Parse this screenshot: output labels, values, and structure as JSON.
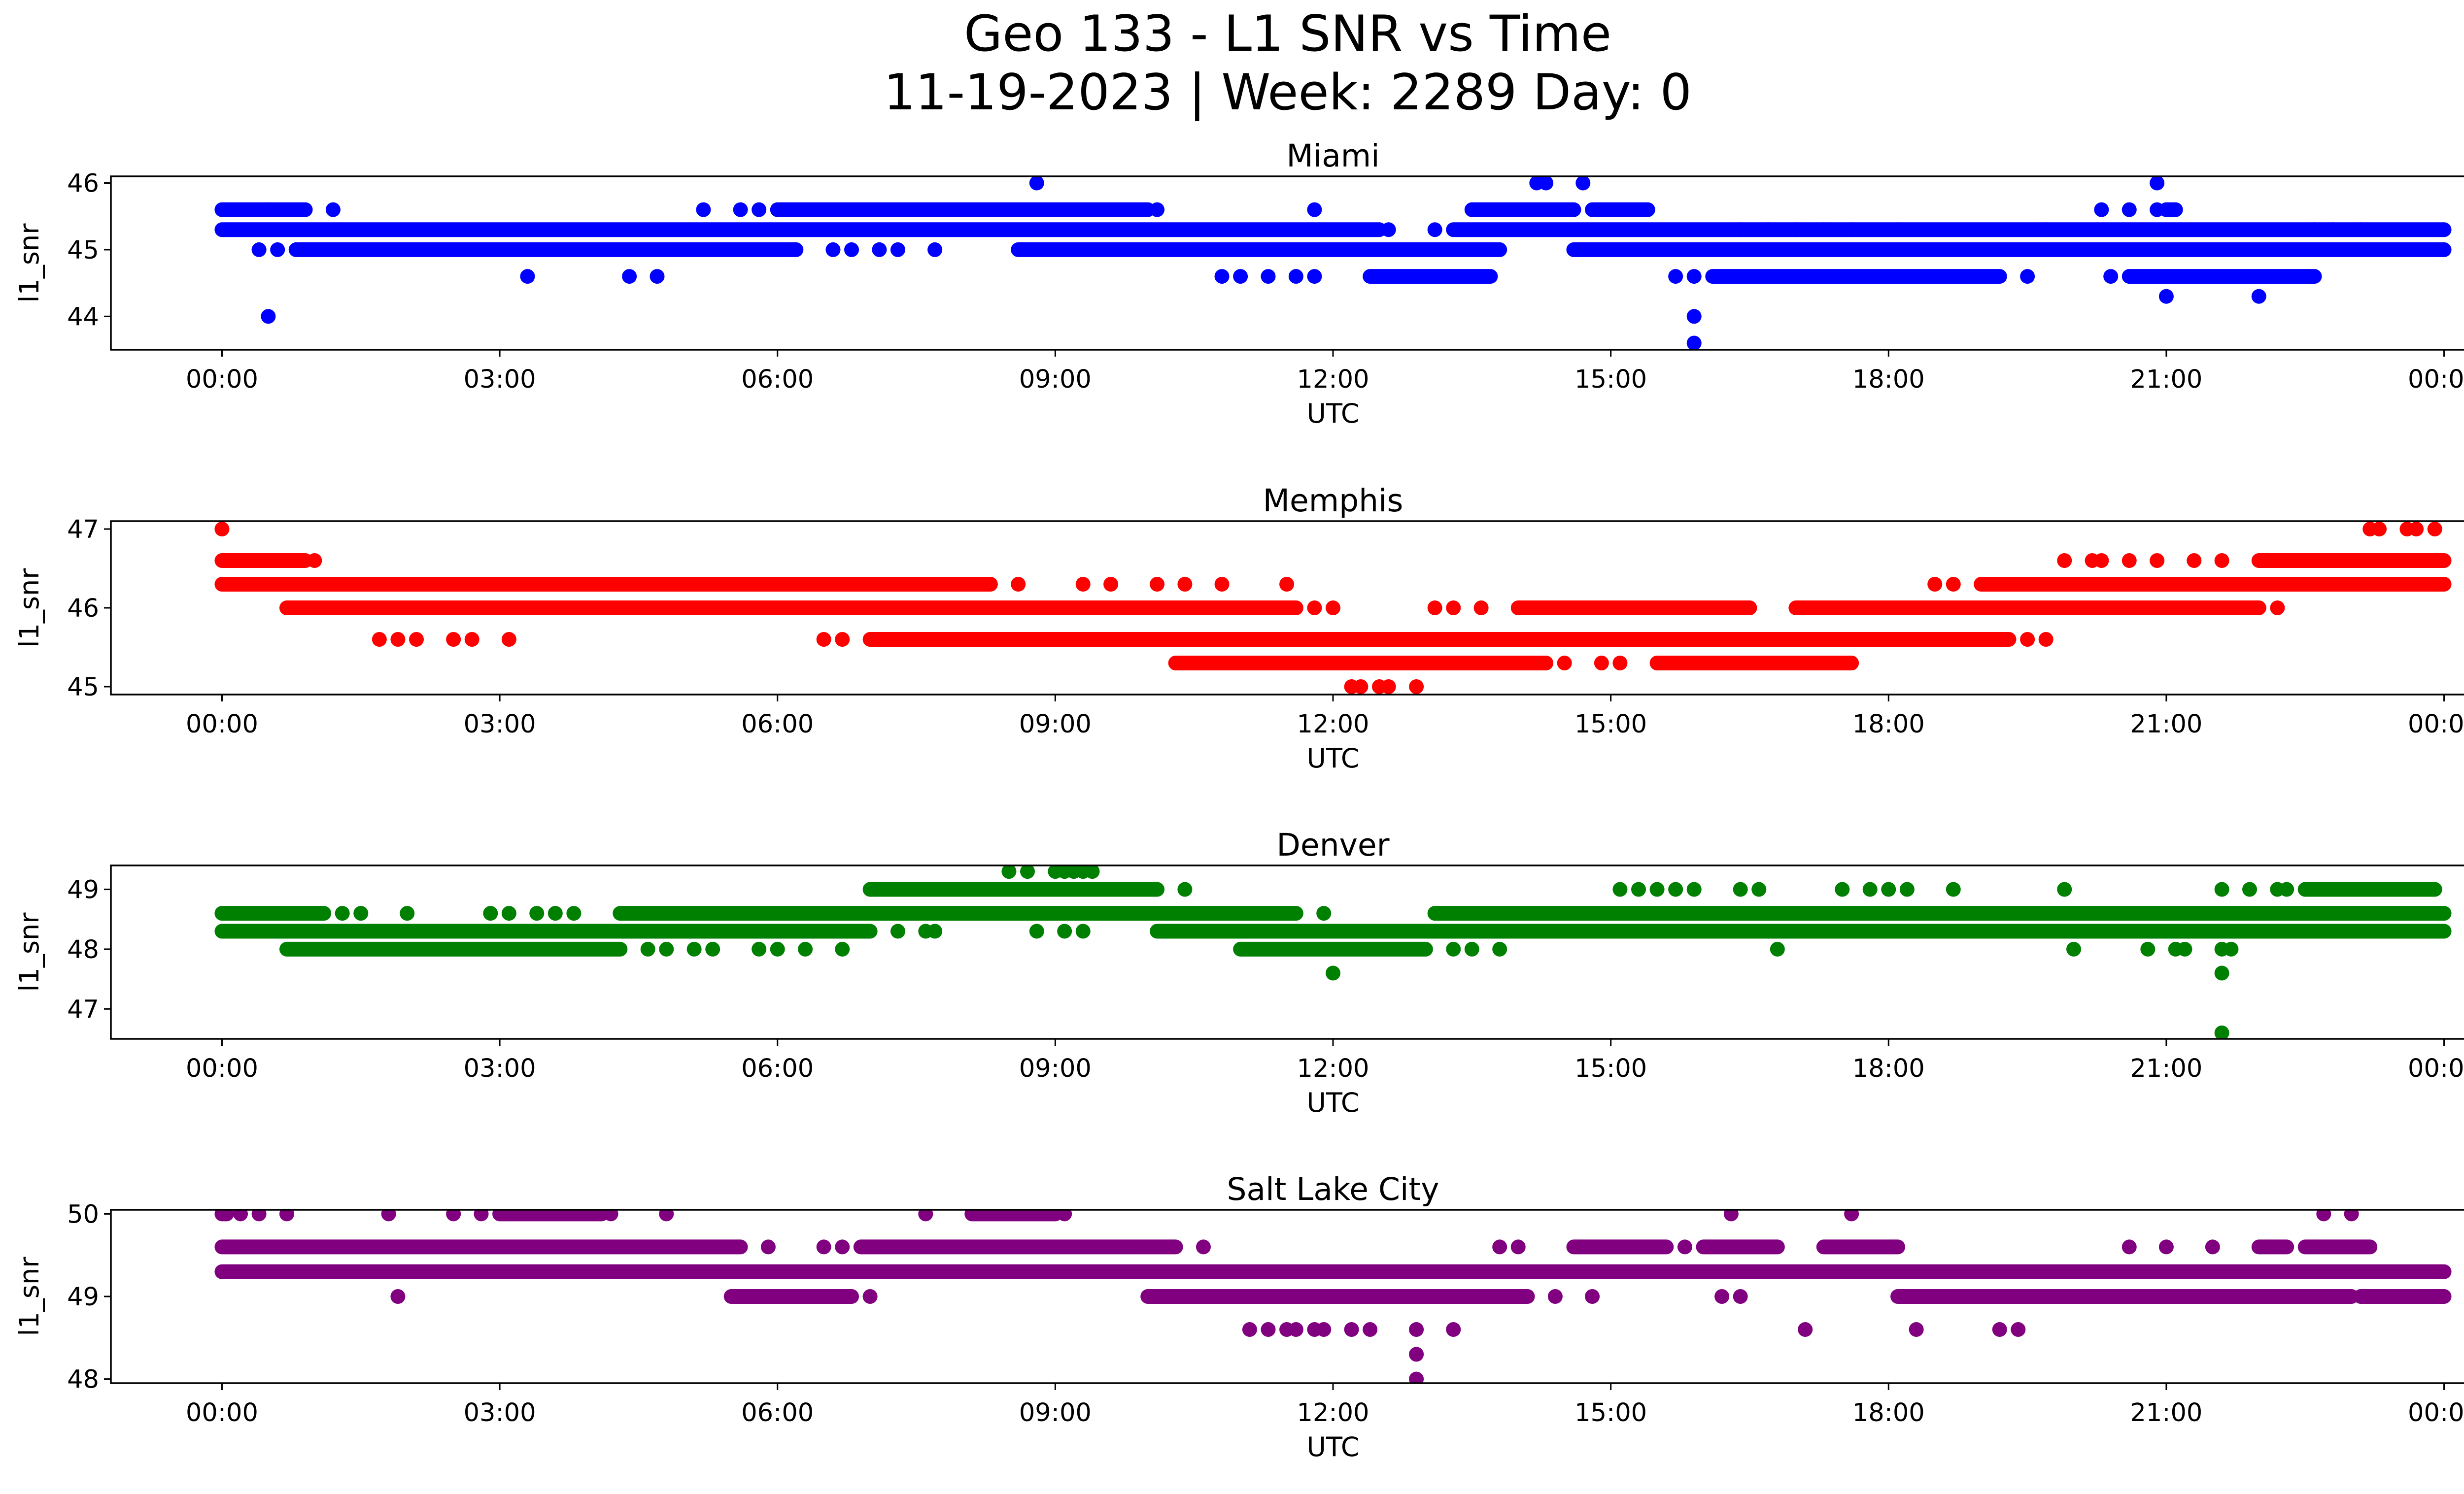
{
  "chart_data": {
    "type": "scatter",
    "title_line1": "Geo 133 - L1 SNR vs Time",
    "title_line2": "11-19-2023 | Week: 2289 Day: 0",
    "xlabel": "UTC",
    "ylabel": "l1_snr",
    "x_unit": "hours UTC",
    "xlim": [
      -1.2,
      25.2
    ],
    "x_tick_values": [
      0,
      3,
      6,
      9,
      12,
      15,
      18,
      21,
      24
    ],
    "x_tick_labels": [
      "00:00",
      "03:00",
      "06:00",
      "09:00",
      "12:00",
      "15:00",
      "18:00",
      "21:00",
      "00:00"
    ],
    "subplots": [
      {
        "title": "Miami",
        "color": "#0000ff",
        "ylim": [
          43.5,
          46.1
        ],
        "y_ticks": [
          44,
          45,
          46
        ],
        "bands": [
          {
            "y": 45.3,
            "ranges": [
              [
                0,
                12.5
              ],
              [
                13.3,
                24
              ]
            ]
          },
          {
            "y": 45.0,
            "ranges": [
              [
                0.8,
                6.2
              ],
              [
                8.6,
                13.8
              ],
              [
                14.6,
                24
              ]
            ]
          },
          {
            "y": 45.6,
            "ranges": [
              [
                0,
                0.9
              ],
              [
                6.0,
                10.0
              ],
              [
                13.5,
                14.6
              ],
              [
                14.8,
                15.4
              ],
              [
                21.0,
                21.1
              ]
            ]
          },
          {
            "y": 44.6,
            "ranges": [
              [
                12.4,
                13.7
              ],
              [
                16.1,
                19.2
              ],
              [
                20.6,
                22.6
              ]
            ]
          }
        ],
        "points": [
          [
            0.5,
            45.6
          ],
          [
            1.2,
            45.6
          ],
          [
            5.2,
            45.6
          ],
          [
            5.6,
            45.6
          ],
          [
            5.8,
            45.6
          ],
          [
            10.1,
            45.6
          ],
          [
            11.8,
            45.6
          ],
          [
            20.3,
            45.6
          ],
          [
            20.6,
            45.6
          ],
          [
            20.9,
            45.6
          ],
          [
            8.8,
            46.0
          ],
          [
            14.2,
            46.0
          ],
          [
            14.3,
            46.0
          ],
          [
            14.7,
            46.0
          ],
          [
            20.9,
            46.0
          ],
          [
            0.5,
            44.0
          ],
          [
            15.9,
            44.0
          ],
          [
            15.9,
            43.6
          ],
          [
            21.0,
            44.3
          ],
          [
            22.0,
            44.3
          ],
          [
            3.3,
            44.6
          ],
          [
            4.4,
            44.6
          ],
          [
            4.7,
            44.6
          ],
          [
            10.8,
            44.6
          ],
          [
            11.0,
            44.6
          ],
          [
            11.3,
            44.6
          ],
          [
            11.6,
            44.6
          ],
          [
            11.8,
            44.6
          ],
          [
            15.7,
            44.6
          ],
          [
            15.9,
            44.6
          ],
          [
            19.5,
            44.6
          ],
          [
            20.4,
            44.6
          ],
          [
            6.6,
            45.0
          ],
          [
            6.8,
            45.0
          ],
          [
            7.1,
            45.0
          ],
          [
            7.3,
            45.0
          ],
          [
            7.7,
            45.0
          ],
          [
            0.4,
            45.0
          ],
          [
            0.6,
            45.0
          ],
          [
            12.6,
            45.3
          ],
          [
            13.1,
            45.3
          ],
          [
            16.4,
            45.3
          ],
          [
            16.7,
            45.3
          ],
          [
            17.0,
            45.3
          ],
          [
            17.3,
            45.3
          ],
          [
            17.6,
            45.3
          ],
          [
            18.1,
            45.3
          ],
          [
            19.7,
            45.3
          ],
          [
            22.6,
            45.3
          ],
          [
            22.8,
            45.3
          ],
          [
            23.1,
            45.3
          ]
        ]
      },
      {
        "title": "Memphis",
        "color": "#ff0000",
        "ylim": [
          44.9,
          47.1
        ],
        "y_ticks": [
          45,
          46,
          47
        ],
        "bands": [
          {
            "y": 46.3,
            "ranges": [
              [
                0,
                8.3
              ],
              [
                19.0,
                24
              ]
            ]
          },
          {
            "y": 46.0,
            "ranges": [
              [
                0.7,
                11.6
              ],
              [
                14.0,
                16.5
              ],
              [
                17.0,
                22.0
              ]
            ]
          },
          {
            "y": 45.6,
            "ranges": [
              [
                7.0,
                19.3
              ]
            ]
          },
          {
            "y": 45.3,
            "ranges": [
              [
                10.3,
                14.3
              ],
              [
                15.5,
                17.6
              ]
            ]
          },
          {
            "y": 46.6,
            "ranges": [
              [
                0,
                0.9
              ],
              [
                22.0,
                24
              ]
            ]
          }
        ],
        "points": [
          [
            0.0,
            47.0
          ],
          [
            23.2,
            47.0
          ],
          [
            23.3,
            47.0
          ],
          [
            23.6,
            47.0
          ],
          [
            23.7,
            47.0
          ],
          [
            23.9,
            47.0
          ],
          [
            12.2,
            45.0
          ],
          [
            12.3,
            45.0
          ],
          [
            12.5,
            45.0
          ],
          [
            12.6,
            45.0
          ],
          [
            12.9,
            45.0
          ],
          [
            8.6,
            46.3
          ],
          [
            9.3,
            46.3
          ],
          [
            9.6,
            46.3
          ],
          [
            10.1,
            46.3
          ],
          [
            10.4,
            46.3
          ],
          [
            10.8,
            46.3
          ],
          [
            11.5,
            46.3
          ],
          [
            18.5,
            46.3
          ],
          [
            18.7,
            46.3
          ],
          [
            1.0,
            46.6
          ],
          [
            19.9,
            46.6
          ],
          [
            20.2,
            46.6
          ],
          [
            20.3,
            46.6
          ],
          [
            20.6,
            46.6
          ],
          [
            20.9,
            46.6
          ],
          [
            21.3,
            46.6
          ],
          [
            21.6,
            46.6
          ],
          [
            1.7,
            45.6
          ],
          [
            1.9,
            45.6
          ],
          [
            2.1,
            45.6
          ],
          [
            2.5,
            45.6
          ],
          [
            2.7,
            45.6
          ],
          [
            3.1,
            45.6
          ],
          [
            6.5,
            45.6
          ],
          [
            6.7,
            45.6
          ],
          [
            19.5,
            45.6
          ],
          [
            19.7,
            45.6
          ],
          [
            11.8,
            46.0
          ],
          [
            12.0,
            46.0
          ],
          [
            13.1,
            46.0
          ],
          [
            13.3,
            46.0
          ],
          [
            13.6,
            46.0
          ],
          [
            22.2,
            46.0
          ],
          [
            14.5,
            45.3
          ],
          [
            14.9,
            45.3
          ],
          [
            15.1,
            45.3
          ]
        ]
      },
      {
        "title": "Denver",
        "color": "#008000",
        "ylim": [
          46.5,
          49.4
        ],
        "y_ticks": [
          47,
          48,
          49
        ],
        "bands": [
          {
            "y": 48.3,
            "ranges": [
              [
                0,
                7.0
              ],
              [
                10.1,
                24
              ]
            ]
          },
          {
            "y": 48.6,
            "ranges": [
              [
                0,
                1.1
              ],
              [
                4.3,
                11.6
              ],
              [
                13.1,
                24
              ]
            ]
          },
          {
            "y": 48.0,
            "ranges": [
              [
                0.7,
                4.3
              ],
              [
                11.0,
                13.0
              ]
            ]
          },
          {
            "y": 49.0,
            "ranges": [
              [
                7.0,
                10.1
              ],
              [
                22.5,
                23.9
              ]
            ]
          }
        ],
        "points": [
          [
            1.3,
            48.6
          ],
          [
            1.5,
            48.6
          ],
          [
            2.0,
            48.6
          ],
          [
            2.9,
            48.6
          ],
          [
            3.1,
            48.6
          ],
          [
            3.4,
            48.6
          ],
          [
            3.6,
            48.6
          ],
          [
            3.8,
            48.6
          ],
          [
            11.9,
            48.6
          ],
          [
            4.6,
            48.0
          ],
          [
            4.8,
            48.0
          ],
          [
            5.1,
            48.0
          ],
          [
            5.3,
            48.0
          ],
          [
            5.8,
            48.0
          ],
          [
            6.0,
            48.0
          ],
          [
            6.3,
            48.0
          ],
          [
            6.7,
            48.0
          ],
          [
            13.3,
            48.0
          ],
          [
            13.5,
            48.0
          ],
          [
            13.8,
            48.0
          ],
          [
            16.8,
            48.0
          ],
          [
            20.0,
            48.0
          ],
          [
            20.8,
            48.0
          ],
          [
            21.1,
            48.0
          ],
          [
            21.2,
            48.0
          ],
          [
            21.6,
            48.0
          ],
          [
            21.7,
            48.0
          ],
          [
            7.3,
            48.3
          ],
          [
            7.6,
            48.3
          ],
          [
            7.7,
            48.3
          ],
          [
            8.8,
            48.3
          ],
          [
            9.1,
            48.3
          ],
          [
            9.3,
            48.3
          ],
          [
            8.5,
            49.3
          ],
          [
            8.7,
            49.3
          ],
          [
            9.0,
            49.3
          ],
          [
            9.1,
            49.3
          ],
          [
            9.2,
            49.3
          ],
          [
            9.3,
            49.3
          ],
          [
            9.4,
            49.3
          ],
          [
            10.4,
            49.0
          ],
          [
            15.1,
            49.0
          ],
          [
            15.3,
            49.0
          ],
          [
            15.5,
            49.0
          ],
          [
            15.7,
            49.0
          ],
          [
            15.9,
            49.0
          ],
          [
            16.4,
            49.0
          ],
          [
            16.6,
            49.0
          ],
          [
            17.5,
            49.0
          ],
          [
            17.8,
            49.0
          ],
          [
            18.0,
            49.0
          ],
          [
            18.2,
            49.0
          ],
          [
            18.7,
            49.0
          ],
          [
            19.9,
            49.0
          ],
          [
            21.6,
            49.0
          ],
          [
            21.9,
            49.0
          ],
          [
            22.2,
            49.0
          ],
          [
            22.3,
            49.0
          ],
          [
            12.0,
            47.6
          ],
          [
            21.6,
            47.6
          ],
          [
            21.6,
            46.6
          ]
        ]
      },
      {
        "title": "Salt Lake City",
        "color": "#800080",
        "ylim": [
          47.95,
          50.05
        ],
        "y_ticks": [
          48,
          49,
          50
        ],
        "bands": [
          {
            "y": 49.3,
            "ranges": [
              [
                0,
                24
              ]
            ]
          },
          {
            "y": 49.6,
            "ranges": [
              [
                0,
                5.6
              ],
              [
                6.9,
                10.3
              ],
              [
                14.6,
                15.6
              ],
              [
                16.0,
                16.8
              ],
              [
                17.3,
                18.1
              ],
              [
                22.0,
                22.3
              ],
              [
                22.5,
                23.2
              ]
            ]
          },
          {
            "y": 49.0,
            "ranges": [
              [
                5.5,
                6.8
              ],
              [
                10.0,
                14.1
              ],
              [
                18.1,
                23.0
              ],
              [
                23.1,
                24
              ]
            ]
          },
          {
            "y": 50.0,
            "ranges": [
              [
                0,
                0.05
              ],
              [
                3.0,
                4.1
              ],
              [
                8.1,
                9.0
              ]
            ]
          }
        ],
        "points": [
          [
            0.2,
            50.0
          ],
          [
            0.4,
            50.0
          ],
          [
            0.7,
            50.0
          ],
          [
            1.8,
            50.0
          ],
          [
            2.5,
            50.0
          ],
          [
            2.8,
            50.0
          ],
          [
            4.2,
            50.0
          ],
          [
            4.8,
            50.0
          ],
          [
            7.6,
            50.0
          ],
          [
            9.1,
            50.0
          ],
          [
            16.3,
            50.0
          ],
          [
            17.6,
            50.0
          ],
          [
            22.7,
            50.0
          ],
          [
            23.0,
            50.0
          ],
          [
            5.9,
            49.6
          ],
          [
            6.5,
            49.6
          ],
          [
            6.7,
            49.6
          ],
          [
            10.6,
            49.6
          ],
          [
            13.8,
            49.6
          ],
          [
            14.0,
            49.6
          ],
          [
            15.8,
            49.6
          ],
          [
            20.6,
            49.6
          ],
          [
            21.0,
            49.6
          ],
          [
            21.5,
            49.6
          ],
          [
            1.9,
            49.0
          ],
          [
            7.0,
            49.0
          ],
          [
            14.4,
            49.0
          ],
          [
            14.8,
            49.0
          ],
          [
            16.2,
            49.0
          ],
          [
            16.4,
            49.0
          ],
          [
            11.1,
            48.6
          ],
          [
            11.3,
            48.6
          ],
          [
            11.5,
            48.6
          ],
          [
            11.6,
            48.6
          ],
          [
            11.8,
            48.6
          ],
          [
            11.9,
            48.6
          ],
          [
            12.2,
            48.6
          ],
          [
            12.4,
            48.6
          ],
          [
            12.9,
            48.6
          ],
          [
            13.3,
            48.6
          ],
          [
            17.1,
            48.6
          ],
          [
            18.3,
            48.6
          ],
          [
            19.2,
            48.6
          ],
          [
            19.4,
            48.6
          ],
          [
            12.9,
            48.3
          ],
          [
            12.9,
            48.0
          ]
        ]
      }
    ]
  }
}
